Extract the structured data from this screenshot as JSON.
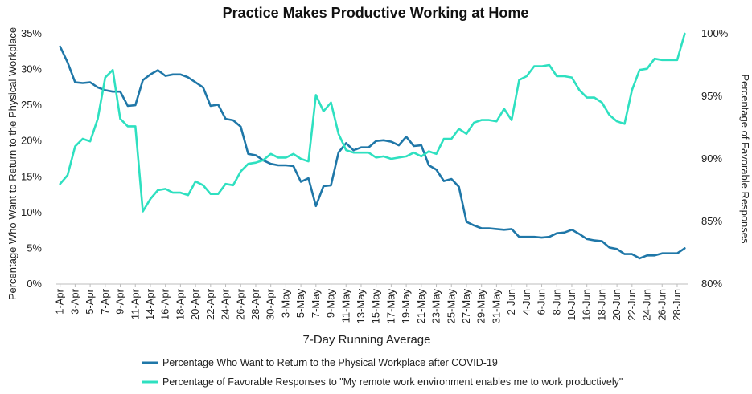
{
  "chart_data": {
    "type": "line",
    "title": "Practice Makes Productive Working at Home",
    "xlabel": "7-Day Running Average",
    "ylabel_left": "Percentage Who Want to Return to the Physical Workplace",
    "ylabel_right": "Percentage of Favorable Responses",
    "y_left_ticks": [
      "0%",
      "5%",
      "10%",
      "15%",
      "20%",
      "25%",
      "30%",
      "35%"
    ],
    "y_left_range": [
      0,
      35
    ],
    "y_right_ticks": [
      "80%",
      "85%",
      "90%",
      "95%",
      "100%"
    ],
    "y_right_range": [
      80,
      100
    ],
    "x_tick_labels": [
      "1-Apr",
      "3-Apr",
      "5-Apr",
      "7-Apr",
      "9-Apr",
      "11-Apr",
      "14-Apr",
      "16-Apr",
      "18-Apr",
      "20-Apr",
      "22-Apr",
      "24-Apr",
      "26-Apr",
      "28-Apr",
      "30-Apr",
      "3-May",
      "5-May",
      "7-May",
      "9-May",
      "11-May",
      "13-May",
      "15-May",
      "17-May",
      "19-May",
      "21-May",
      "23-May",
      "25-May",
      "27-May",
      "29-May",
      "31-May",
      "2-Jun",
      "4-Jun",
      "6-Jun",
      "8-Jun",
      "10-Jun",
      "16-Jun",
      "18-Jun",
      "20-Jun",
      "22-Jun",
      "24-Jun",
      "26-Jun",
      "28-Jun"
    ],
    "grid": false,
    "legend_position": "bottom",
    "series": [
      {
        "name": "Percentage Who Want to Return to the Physical Workplace after COVID-19",
        "axis": "left",
        "color": "#1F77A8",
        "values": [
          33.2,
          31.0,
          28.2,
          28.1,
          28.2,
          27.5,
          27.1,
          26.9,
          26.9,
          24.9,
          25.0,
          28.5,
          29.3,
          29.9,
          29.1,
          29.3,
          29.3,
          28.9,
          28.2,
          27.5,
          24.9,
          25.1,
          23.1,
          22.9,
          22.0,
          18.2,
          18.0,
          17.3,
          16.8,
          16.6,
          16.6,
          16.5,
          14.3,
          14.8,
          10.9,
          13.7,
          13.8,
          18.4,
          19.7,
          18.7,
          19.1,
          19.1,
          20.0,
          20.1,
          19.9,
          19.4,
          20.6,
          19.3,
          19.4,
          16.6,
          16.0,
          14.4,
          14.7,
          13.6,
          8.7,
          8.2,
          7.8,
          7.8,
          7.7,
          7.6,
          7.7,
          6.6,
          6.6,
          6.6,
          6.5,
          6.6,
          7.1,
          7.2,
          7.6,
          7.0,
          6.3,
          6.1,
          6.0,
          5.1,
          4.9,
          4.2,
          4.2,
          3.6,
          4.0,
          4.0,
          4.3,
          4.3,
          4.3,
          5.0
        ]
      },
      {
        "name": "Percentage of Favorable Responses to \"My remote work environment enables me to work productively\"",
        "axis": "right",
        "color": "#2EE0C0",
        "values": [
          88.0,
          88.7,
          91.0,
          91.6,
          91.4,
          93.2,
          96.5,
          97.1,
          93.2,
          92.6,
          92.6,
          85.8,
          86.8,
          87.5,
          87.6,
          87.3,
          87.3,
          87.1,
          88.2,
          87.9,
          87.2,
          87.2,
          88.0,
          87.9,
          89.0,
          89.6,
          89.7,
          89.9,
          90.4,
          90.1,
          90.1,
          90.4,
          90.0,
          89.8,
          95.1,
          93.8,
          94.5,
          92.0,
          90.7,
          90.5,
          90.5,
          90.5,
          90.1,
          90.2,
          90.0,
          90.1,
          90.2,
          90.5,
          90.2,
          90.6,
          90.4,
          91.6,
          91.6,
          92.4,
          92.0,
          92.9,
          93.1,
          93.1,
          93.0,
          94.0,
          93.1,
          96.3,
          96.6,
          97.4,
          97.4,
          97.5,
          96.6,
          96.6,
          96.5,
          95.5,
          94.9,
          94.9,
          94.5,
          93.5,
          93.0,
          92.8,
          95.5,
          97.1,
          97.2,
          98.0,
          97.9,
          97.9,
          97.9,
          100.0
        ]
      }
    ]
  }
}
